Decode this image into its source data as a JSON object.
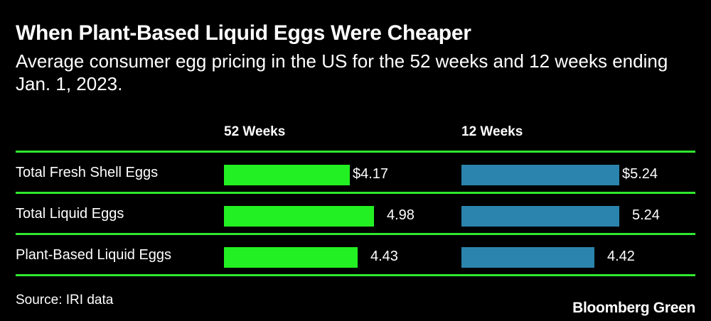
{
  "title": "When Plant-Based Liquid Eggs Were Cheaper",
  "subtitle": "Average consumer egg pricing in the US for the 52 weeks and 12 weeks ending Jan. 1, 2023.",
  "source": "Source: IRI data",
  "brand": "Bloomberg Green",
  "colors": {
    "background": "#000000",
    "rule": "#2ee82e",
    "series_52": "#22f022",
    "series_12": "#2b84ad",
    "text": "#ffffff"
  },
  "chart_data": {
    "type": "bar",
    "orientation": "horizontal",
    "title": "When Plant-Based Liquid Eggs Were Cheaper",
    "categories": [
      "Total Fresh Shell Eggs",
      "Total Liquid Eggs",
      "Plant-Based Liquid Eggs"
    ],
    "series": [
      {
        "name": "52 Weeks",
        "values": [
          4.17,
          4.98,
          4.43
        ],
        "labels": [
          "$4.17",
          "4.98",
          "4.43"
        ]
      },
      {
        "name": "12 Weeks",
        "values": [
          5.24,
          5.24,
          4.42
        ],
        "labels": [
          "$5.24",
          "5.24",
          "4.42"
        ]
      }
    ],
    "unit": "USD",
    "xlim": [
      0,
      5.24
    ]
  }
}
